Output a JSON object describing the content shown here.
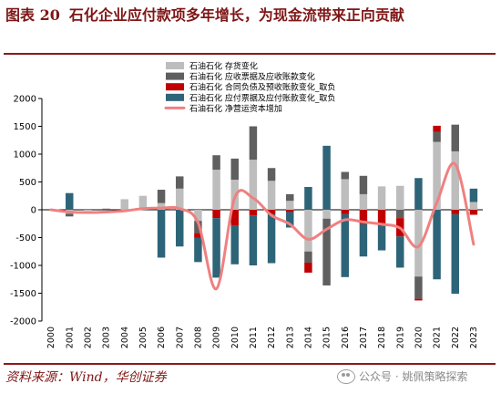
{
  "header": {
    "figure_label": "图表 20",
    "title": "石化企业应付款项多年增长，为现金流带来正向贡献"
  },
  "footer": {
    "source": "资料来源：Wind，华创证券",
    "watermark_icon": "wechat-icon",
    "watermark_text": "公众号 · 姚佩策略探索"
  },
  "colors": {
    "accent": "#7f1616",
    "inventory": "#bdbdbd",
    "receivables": "#5f5f5f",
    "contract_liab": "#c00000",
    "payables": "#2e6478",
    "working_capital": "#f08080"
  },
  "chart_data": {
    "type": "bar",
    "stacked": true,
    "legend_position": "top-center",
    "grid": false,
    "ylim": [
      -2000,
      2000
    ],
    "yticks": [
      -2000,
      -1500,
      -1000,
      -500,
      0,
      500,
      1000,
      1500,
      2000
    ],
    "categories": [
      "2000",
      "2001",
      "2002",
      "2003",
      "2004",
      "2005",
      "2006",
      "2007",
      "2008",
      "2009",
      "2010",
      "2011",
      "2012",
      "2013",
      "2014",
      "2015",
      "2016",
      "2017",
      "2018",
      "2019",
      "2020",
      "2021",
      "2022",
      "2023"
    ],
    "series": [
      {
        "name": "石油石化 存货变化",
        "kind": "bar",
        "values": [
          0,
          -70,
          -20,
          0,
          190,
          250,
          120,
          380,
          -200,
          720,
          540,
          900,
          520,
          160,
          -750,
          -160,
          550,
          280,
          420,
          430,
          -1200,
          1220,
          1050,
          140
        ]
      },
      {
        "name": "石油石化 应收票据及应收账款变化",
        "kind": "bar",
        "values": [
          0,
          -50,
          0,
          20,
          0,
          0,
          240,
          220,
          -220,
          260,
          380,
          600,
          230,
          120,
          -200,
          -1200,
          130,
          330,
          0,
          -150,
          -400,
          180,
          480,
          0
        ]
      },
      {
        "name": "石油石化 合同负债及预收账款变化_取负",
        "kind": "bar",
        "values": [
          0,
          0,
          0,
          0,
          0,
          0,
          0,
          0,
          -80,
          -150,
          -290,
          -100,
          -80,
          -40,
          -180,
          0,
          -80,
          -260,
          -250,
          -330,
          -30,
          110,
          -80,
          -90
        ]
      },
      {
        "name": "石油石化 应付票据及应付账款变化_取负",
        "kind": "bar",
        "values": [
          0,
          300,
          0,
          0,
          0,
          0,
          -860,
          -660,
          -440,
          -1070,
          -690,
          -900,
          -880,
          -280,
          410,
          1150,
          -1130,
          -580,
          -480,
          -560,
          570,
          -1250,
          -1430,
          240
        ]
      },
      {
        "name": "石油石化 净营运资本增加",
        "kind": "line",
        "values": [
          0,
          -40,
          -50,
          -40,
          -20,
          20,
          30,
          20,
          -230,
          -1420,
          220,
          210,
          -100,
          -260,
          -530,
          -350,
          -180,
          -220,
          -260,
          -330,
          -660,
          130,
          820,
          -620
        ]
      }
    ]
  }
}
